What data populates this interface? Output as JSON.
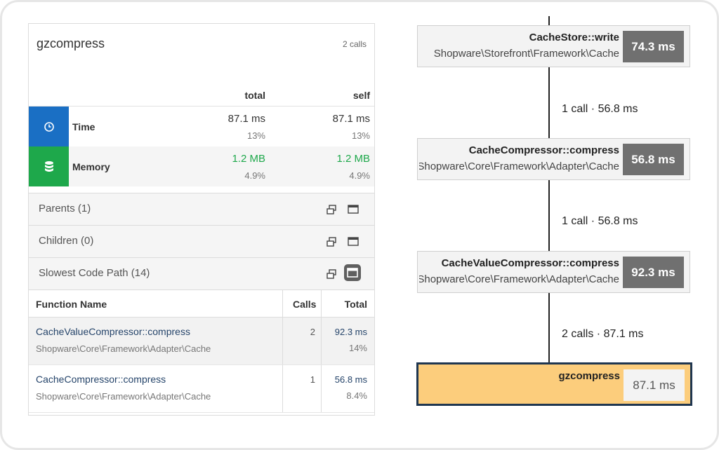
{
  "panel": {
    "title": "gzcompress",
    "calls": "2 calls",
    "col_total": "total",
    "col_self": "self",
    "metrics": [
      {
        "label": "Time",
        "total": "87.1 ms",
        "total_pct": "13%",
        "self": "87.1 ms",
        "self_pct": "13%",
        "icon": "clock-icon",
        "color": "#1a6fc4"
      },
      {
        "label": "Memory",
        "total": "1.2 MB",
        "total_pct": "4.9%",
        "self": "1.2 MB",
        "self_pct": "4.9%",
        "icon": "database-icon",
        "color": "#1ea84b"
      }
    ],
    "sections": [
      {
        "label": "Parents (1)"
      },
      {
        "label": "Children (0)"
      },
      {
        "label": "Slowest Code Path (14)"
      }
    ],
    "table": {
      "headers": [
        "Function Name",
        "Calls",
        "Total"
      ],
      "rows": [
        {
          "name": "CacheValueCompressor::compress",
          "ns": "Shopware\\Core\\Framework\\Adapter\\Cache",
          "calls": "2",
          "total": "92.3 ms",
          "pct": "14%"
        },
        {
          "name": "CacheCompressor::compress",
          "ns": "Shopware\\Core\\Framework\\Adapter\\Cache",
          "calls": "1",
          "total": "56.8 ms",
          "pct": "8.4%"
        }
      ]
    }
  },
  "graph": {
    "nodes": [
      {
        "name": "CacheStore::write",
        "ns": "Shopware\\Storefront\\Framework\\Cache",
        "time": "74.3 ms"
      },
      {
        "name": "CacheCompressor::compress",
        "ns": "Shopware\\Core\\Framework\\Adapter\\Cache",
        "time": "56.8 ms"
      },
      {
        "name": "CacheValueCompressor::compress",
        "ns": "Shopware\\Core\\Framework\\Adapter\\Cache",
        "time": "92.3 ms"
      },
      {
        "name": "gzcompress",
        "time": "87.1 ms"
      }
    ],
    "edges": [
      {
        "label": "1 call · 56.8 ms"
      },
      {
        "label": "1 call · 56.8 ms"
      },
      {
        "label": "2 calls · 87.1 ms"
      }
    ]
  }
}
